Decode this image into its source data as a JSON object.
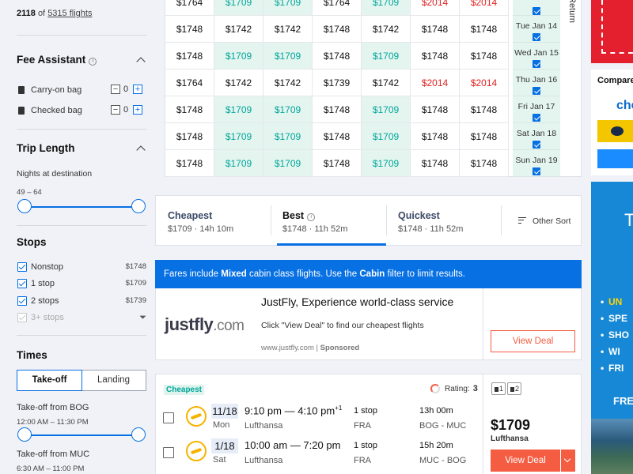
{
  "sidebar": {
    "results": {
      "shown": "2118",
      "of": "of",
      "total": "5315 flights"
    },
    "fee_assistant": {
      "title": "Fee Assistant",
      "bags": [
        {
          "label": "Carry-on bag",
          "value": "0"
        },
        {
          "label": "Checked bag",
          "value": "0"
        }
      ]
    },
    "trip_length": {
      "title": "Trip Length",
      "sub": "Nights at destination",
      "range": "49 – 64"
    },
    "stops": {
      "title": "Stops",
      "items": [
        {
          "label": "Nonstop",
          "price": "$1748"
        },
        {
          "label": "1 stop",
          "price": "$1709"
        },
        {
          "label": "2 stops",
          "price": "$1739"
        },
        {
          "label": "3+ stops",
          "price": ""
        }
      ]
    },
    "times": {
      "title": "Times",
      "tabs": [
        "Take-off",
        "Landing"
      ],
      "takeoff_bog": {
        "label": "Take-off from BOG",
        "range": "12:00 AM – 11:30 PM"
      },
      "takeoff_muc": {
        "label": "Take-off from MUC",
        "range": "6:30 AM – 11:00 PM"
      }
    }
  },
  "price_grid": {
    "return_label": "Return",
    "rows": [
      {
        "cells": [
          "$1764",
          "$1709",
          "$1709",
          "$1764",
          "$1709",
          "$2014",
          "$2014"
        ],
        "date": ""
      },
      {
        "cells": [
          "$1748",
          "$1742",
          "$1742",
          "$1748",
          "$1742",
          "$1748",
          "$1748"
        ],
        "date": "Tue Jan 14"
      },
      {
        "cells": [
          "$1748",
          "$1709",
          "$1709",
          "$1748",
          "$1709",
          "$1748",
          "$1748"
        ],
        "date": "Wed Jan 15"
      },
      {
        "cells": [
          "$1764",
          "$1742",
          "$1742",
          "$1739",
          "$1742",
          "$2014",
          "$2014"
        ],
        "date": "Thu Jan 16"
      },
      {
        "cells": [
          "$1748",
          "$1709",
          "$1709",
          "$1748",
          "$1709",
          "$1748",
          "$1748"
        ],
        "date": "Fri Jan 17"
      },
      {
        "cells": [
          "$1748",
          "$1709",
          "$1709",
          "$1748",
          "$1709",
          "$1748",
          "$1748"
        ],
        "date": "Sat Jan 18"
      },
      {
        "cells": [
          "$1748",
          "$1709",
          "$1709",
          "$1748",
          "$1709",
          "$1748",
          "$1748"
        ],
        "date": "Sun Jan 19"
      }
    ]
  },
  "sort": {
    "tabs": [
      {
        "title": "Cheapest",
        "sub": "$1709 · 14h 10m"
      },
      {
        "title": "Best",
        "sub": "$1748 · 11h 52m"
      },
      {
        "title": "Quickest",
        "sub": "$1748 · 11h 52m"
      }
    ],
    "other": "Other Sort"
  },
  "banner": {
    "pre": "Fares include ",
    "mixed": "Mixed",
    "mid": " cabin class flights. Use the ",
    "cabin": "Cabin",
    "post": " filter to limit results."
  },
  "ad": {
    "logo": "justfly",
    "logo_domain": ".com",
    "title": "JustFly, Experience world-class service",
    "desc": "Click \"View Deal\" to find our cheapest flights",
    "url": "www.justfly.com",
    "sponsored": "Sponsored",
    "button": "View Deal"
  },
  "flight": {
    "badge": "Cheapest",
    "rating_label": "Rating:",
    "rating": "3",
    "legs": [
      {
        "date": "11/18",
        "day": "Mon",
        "time": "9:10 pm — 4:10 pm",
        "plus": "+1",
        "carrier": "Lufthansa",
        "stops": "1 stop",
        "via": "FRA",
        "duration": "13h 00m",
        "route": "BOG - MUC"
      },
      {
        "date": "1/18",
        "day": "Sat",
        "time": "10:00 am — 7:20 pm",
        "plus": "",
        "carrier": "Lufthansa",
        "stops": "1 stop",
        "via": "FRA",
        "duration": "15h 20m",
        "route": "MUC - BOG"
      }
    ],
    "bags": [
      "1",
      "2"
    ],
    "price": "$1709",
    "carrier": "Lufthansa",
    "button": "View Deal"
  },
  "right_ads": {
    "compare_title": "Compare",
    "compare_logo": "che",
    "travel_big": "T",
    "travel_items": [
      "UN",
      "SPE",
      "SHO",
      "WI",
      "FRI"
    ],
    "travel_free": "FRE"
  },
  "colors": {
    "accent": "#0770e3",
    "cta": "#f55d42",
    "cheap": "#00a698",
    "cheap_bg": "#e4f5f0",
    "expensive": "#e02020"
  }
}
